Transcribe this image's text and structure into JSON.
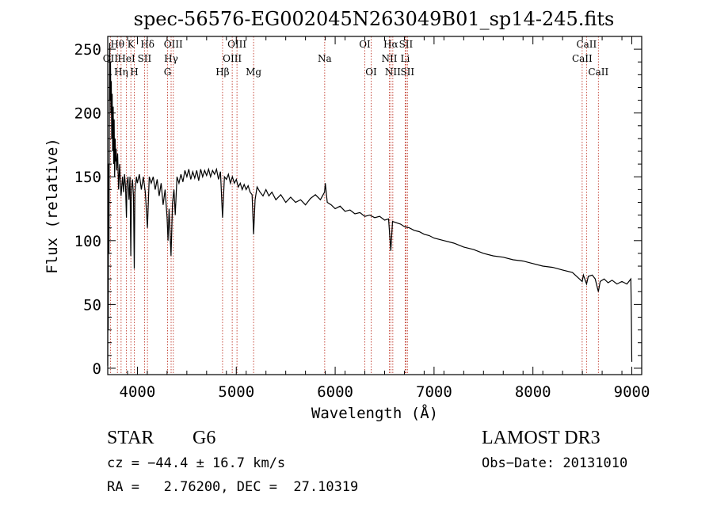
{
  "chart_data": {
    "type": "line",
    "title": "spec-56576-EG002045N263049B01_sp14-245.fits",
    "xlabel": "Wavelength (Å)",
    "ylabel": "Flux (relative)",
    "xlim": [
      3700,
      9100
    ],
    "ylim": [
      -5,
      260
    ],
    "xticks": [
      4000,
      5000,
      6000,
      7000,
      8000,
      9000
    ],
    "yticks": [
      0,
      50,
      100,
      150,
      200,
      250
    ],
    "series": [
      {
        "name": "flux",
        "points": [
          [
            3700,
            2
          ],
          [
            3702,
            120
          ],
          [
            3705,
            30
          ],
          [
            3708,
            160
          ],
          [
            3712,
            90
          ],
          [
            3716,
            200
          ],
          [
            3720,
            255
          ],
          [
            3724,
            210
          ],
          [
            3728,
            240
          ],
          [
            3732,
            200
          ],
          [
            3736,
            225
          ],
          [
            3740,
            180
          ],
          [
            3745,
            215
          ],
          [
            3750,
            170
          ],
          [
            3755,
            205
          ],
          [
            3760,
            160
          ],
          [
            3765,
            195
          ],
          [
            3770,
            150
          ],
          [
            3775,
            180
          ],
          [
            3780,
            162
          ],
          [
            3785,
            172
          ],
          [
            3790,
            155
          ],
          [
            3800,
            168
          ],
          [
            3810,
            140
          ],
          [
            3820,
            160
          ],
          [
            3835,
            135
          ],
          [
            3850,
            150
          ],
          [
            3860,
            138
          ],
          [
            3870,
            152
          ],
          [
            3880,
            142
          ],
          [
            3889,
            118
          ],
          [
            3895,
            145
          ],
          [
            3905,
            150
          ],
          [
            3915,
            132
          ],
          [
            3925,
            150
          ],
          [
            3933,
            88
          ],
          [
            3940,
            140
          ],
          [
            3950,
            148
          ],
          [
            3960,
            135
          ],
          [
            3968,
            78
          ],
          [
            3975,
            138
          ],
          [
            3990,
            150
          ],
          [
            4000,
            145
          ],
          [
            4020,
            152
          ],
          [
            4040,
            140
          ],
          [
            4060,
            150
          ],
          [
            4080,
            138
          ],
          [
            4101,
            110
          ],
          [
            4120,
            150
          ],
          [
            4140,
            145
          ],
          [
            4160,
            150
          ],
          [
            4180,
            140
          ],
          [
            4200,
            148
          ],
          [
            4220,
            135
          ],
          [
            4240,
            145
          ],
          [
            4260,
            128
          ],
          [
            4280,
            140
          ],
          [
            4300,
            118
          ],
          [
            4310,
            100
          ],
          [
            4320,
            125
          ],
          [
            4340,
            88
          ],
          [
            4355,
            130
          ],
          [
            4370,
            140
          ],
          [
            4383,
            120
          ],
          [
            4400,
            150
          ],
          [
            4420,
            145
          ],
          [
            4440,
            152
          ],
          [
            4460,
            146
          ],
          [
            4480,
            155
          ],
          [
            4500,
            150
          ],
          [
            4520,
            156
          ],
          [
            4540,
            148
          ],
          [
            4560,
            154
          ],
          [
            4580,
            149
          ],
          [
            4600,
            155
          ],
          [
            4620,
            147
          ],
          [
            4640,
            156
          ],
          [
            4660,
            150
          ],
          [
            4680,
            155
          ],
          [
            4700,
            151
          ],
          [
            4720,
            156
          ],
          [
            4740,
            150
          ],
          [
            4760,
            155
          ],
          [
            4780,
            152
          ],
          [
            4800,
            156
          ],
          [
            4820,
            148
          ],
          [
            4840,
            154
          ],
          [
            4861,
            118
          ],
          [
            4880,
            150
          ],
          [
            4900,
            148
          ],
          [
            4920,
            152
          ],
          [
            4940,
            145
          ],
          [
            4960,
            150
          ],
          [
            4980,
            145
          ],
          [
            5000,
            148
          ],
          [
            5020,
            142
          ],
          [
            5040,
            145
          ],
          [
            5060,
            140
          ],
          [
            5080,
            144
          ],
          [
            5100,
            140
          ],
          [
            5120,
            143
          ],
          [
            5140,
            138
          ],
          [
            5160,
            136
          ],
          [
            5175,
            105
          ],
          [
            5190,
            132
          ],
          [
            5210,
            142
          ],
          [
            5240,
            138
          ],
          [
            5270,
            135
          ],
          [
            5300,
            140
          ],
          [
            5330,
            135
          ],
          [
            5360,
            138
          ],
          [
            5400,
            132
          ],
          [
            5450,
            136
          ],
          [
            5500,
            130
          ],
          [
            5550,
            134
          ],
          [
            5600,
            130
          ],
          [
            5650,
            132
          ],
          [
            5700,
            128
          ],
          [
            5750,
            133
          ],
          [
            5800,
            136
          ],
          [
            5850,
            132
          ],
          [
            5893,
            138
          ],
          [
            5900,
            145
          ],
          [
            5920,
            130
          ],
          [
            5960,
            128
          ],
          [
            6000,
            125
          ],
          [
            6050,
            127
          ],
          [
            6100,
            123
          ],
          [
            6150,
            124
          ],
          [
            6200,
            121
          ],
          [
            6250,
            122
          ],
          [
            6300,
            119
          ],
          [
            6350,
            120
          ],
          [
            6400,
            118
          ],
          [
            6450,
            119
          ],
          [
            6500,
            116
          ],
          [
            6540,
            117
          ],
          [
            6563,
            92
          ],
          [
            6580,
            115
          ],
          [
            6620,
            114
          ],
          [
            6660,
            113
          ],
          [
            6700,
            111
          ],
          [
            6750,
            110
          ],
          [
            6800,
            108
          ],
          [
            6850,
            107
          ],
          [
            6900,
            105
          ],
          [
            6950,
            104
          ],
          [
            7000,
            102
          ],
          [
            7100,
            100
          ],
          [
            7200,
            98
          ],
          [
            7300,
            95
          ],
          [
            7400,
            93
          ],
          [
            7500,
            90
          ],
          [
            7600,
            88
          ],
          [
            7700,
            87
          ],
          [
            7800,
            85
          ],
          [
            7900,
            84
          ],
          [
            8000,
            82
          ],
          [
            8100,
            80
          ],
          [
            8200,
            79
          ],
          [
            8300,
            77
          ],
          [
            8400,
            75
          ],
          [
            8498,
            68
          ],
          [
            8510,
            73
          ],
          [
            8542,
            66
          ],
          [
            8560,
            72
          ],
          [
            8600,
            73
          ],
          [
            8630,
            70
          ],
          [
            8662,
            60
          ],
          [
            8680,
            68
          ],
          [
            8720,
            70
          ],
          [
            8760,
            67
          ],
          [
            8800,
            69
          ],
          [
            8850,
            66
          ],
          [
            8900,
            68
          ],
          [
            8950,
            66
          ],
          [
            8990,
            70
          ],
          [
            8995,
            45
          ],
          [
            9000,
            5
          ]
        ]
      }
    ],
    "line_markers": [
      {
        "label": "OII",
        "wavelength": 3727,
        "row": 1
      },
      {
        "label": "Hθ",
        "wavelength": 3798,
        "row": 0
      },
      {
        "label": "Hη",
        "wavelength": 3835,
        "row": 2
      },
      {
        "label": "HeI",
        "wavelength": 3889,
        "row": 1
      },
      {
        "label": "K",
        "wavelength": 3934,
        "row": 0
      },
      {
        "label": "H",
        "wavelength": 3968,
        "row": 2
      },
      {
        "label": "SII",
        "wavelength": 4072,
        "row": 1
      },
      {
        "label": "Hδ",
        "wavelength": 4102,
        "row": 0
      },
      {
        "label": "G",
        "wavelength": 4305,
        "row": 2
      },
      {
        "label": "Hγ",
        "wavelength": 4341,
        "row": 1
      },
      {
        "label": "OIII",
        "wavelength": 4363,
        "row": 0
      },
      {
        "label": "Hβ",
        "wavelength": 4861,
        "row": 2
      },
      {
        "label": "OIII",
        "wavelength": 4959,
        "row": 1
      },
      {
        "label": "OIII",
        "wavelength": 5007,
        "row": 0
      },
      {
        "label": "Mg",
        "wavelength": 5175,
        "row": 2
      },
      {
        "label": "Na",
        "wavelength": 5894,
        "row": 1
      },
      {
        "label": "OI",
        "wavelength": 6300,
        "row": 0
      },
      {
        "label": "OI",
        "wavelength": 6364,
        "row": 2
      },
      {
        "label": "NII",
        "wavelength": 6548,
        "row": 1
      },
      {
        "label": "Hα",
        "wavelength": 6563,
        "row": 0
      },
      {
        "label": "NII",
        "wavelength": 6583,
        "row": 2
      },
      {
        "label": "Li",
        "wavelength": 6708,
        "row": 1
      },
      {
        "label": "SII",
        "wavelength": 6716,
        "row": 0
      },
      {
        "label": "SII",
        "wavelength": 6731,
        "row": 2
      },
      {
        "label": "CaII",
        "wavelength": 8498,
        "row": 1
      },
      {
        "label": "CaII",
        "wavelength": 8542,
        "row": 0
      },
      {
        "label": "CaII",
        "wavelength": 8662,
        "row": 2
      }
    ]
  },
  "info": {
    "object_class": "STAR",
    "subclass": "G6",
    "survey": "LAMOST DR3",
    "redshift": "cz = −44.4 ± 16.7 km/s",
    "obs_date": "Obs−Date: 20131010",
    "coords": "RA =   2.76200, DEC =  27.10319"
  },
  "colors": {
    "axis": "#000000",
    "spectrum": "#000000",
    "line_marker": "#c0392b"
  }
}
